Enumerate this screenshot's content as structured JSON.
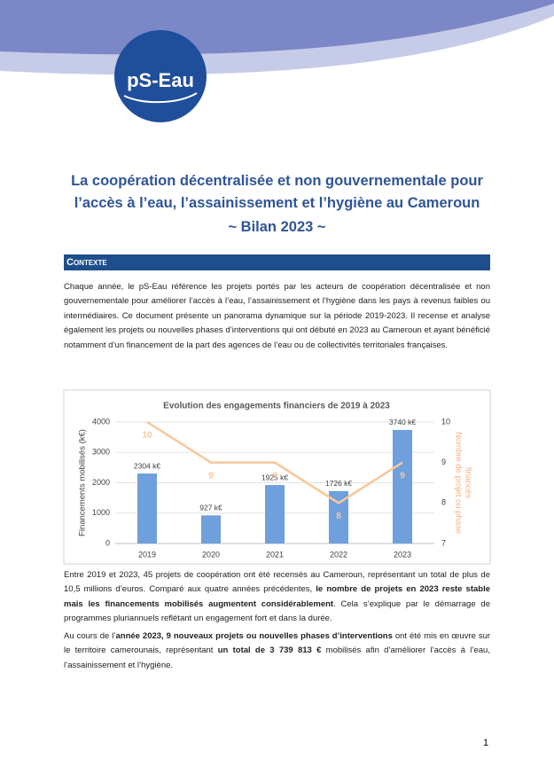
{
  "logo": {
    "text": "pS-Eau"
  },
  "header": {
    "title_lines": [
      "La coopération décentralisée et non gouvernementale pour",
      "l’accès à l’eau, l’assainissement et l’hygiène au Cameroun",
      "~ Bilan 2023 ~"
    ]
  },
  "section": {
    "title": "Contexte"
  },
  "intro": [
    {
      "text": "Chaque année, le pS-Eau référence les projets portés par les acteurs de coopération décentralisée et non gouvernementale pour améliorer l’accès à l’eau, l’assainissement et l’hygiène dans les pays à revenus faibles ou intermédiaires. Ce document présente un panorama dynamique sur la période 2019-2023. Il recense et analyse également les projets ou nouvelles phases d’interventions qui ont débuté en 2023 au Cameroun et ayant bénéficié notamment d’un financement de la part des agences de l’eau ou de collectivités territoriales françaises.",
      "bold": false
    }
  ],
  "chart_data": {
    "type": "bar",
    "title": "Evolution des engagements financiers de 2019 à 2023",
    "categories": [
      "2019",
      "2020",
      "2021",
      "2022",
      "2023"
    ],
    "ylabel": "Financements mobilisés (k€)",
    "y2label": [
      "Nombre de projet ou phase",
      "financés"
    ],
    "ylim": [
      0,
      4000
    ],
    "yticks": [
      0,
      1000,
      2000,
      3000,
      4000
    ],
    "y2lim": [
      7,
      10
    ],
    "y2ticks": [
      7,
      8,
      9,
      10
    ],
    "grid": true,
    "series": [
      {
        "type": "bar",
        "color": "#6f9fdc",
        "values": [
          2304,
          927,
          1925,
          1726,
          3740
        ],
        "value_labels": [
          "2304 k€",
          "927 k€",
          "1925 k€",
          "1726 k€",
          "3740 k€"
        ]
      },
      {
        "type": "line",
        "axis": "y2",
        "color": "#f8c79a",
        "values": [
          10,
          9,
          9,
          8,
          9
        ]
      }
    ]
  },
  "paragraphs": [
    [
      {
        "text": "Entre 2019 et 2023, 45 projets de coopération ont été recensés au Cameroun, représentant un total de plus de 10,5 millions d’euros. Comparé aux quatre années précédentes, ",
        "bold": false
      },
      {
        "text": "le nombre de projets en 2023 reste stable mais les financements mobilisés augmentent considérablement",
        "bold": true
      },
      {
        "text": ". Cela s’explique par le démarrage de programmes pluriannuels reflétant un engagement fort et dans la durée.",
        "bold": false
      }
    ],
    [
      {
        "text": "Au cours de l’",
        "bold": false
      },
      {
        "text": "année 2023, 9 nouveaux projets ou nouvelles phases d’interventions",
        "bold": true
      },
      {
        "text": " ont été mis en œuvre sur le territoire camerounais, représentant ",
        "bold": false
      },
      {
        "text": "un total de 3 739 813 €",
        "bold": true
      },
      {
        "text": " mobilisés afin d’améliorer l’accès à l’eau, l’assainissement et l’hygiène.",
        "bold": false
      }
    ]
  ],
  "footer": {
    "page": "1"
  }
}
